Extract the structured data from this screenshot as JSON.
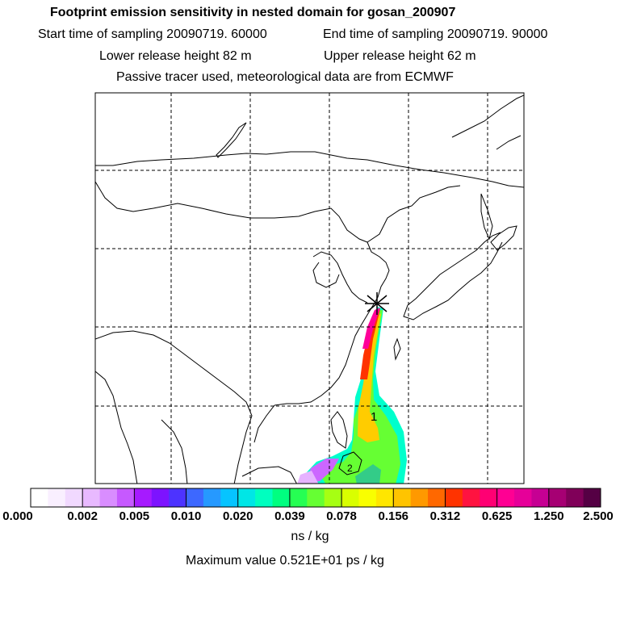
{
  "header": {
    "title": "Footprint emission sensitivity in nested domain for gosan_200907",
    "start": "Start time of sampling 20090719. 60000",
    "end": "End time of sampling 20090719. 90000",
    "lower": "Lower release height   82 m",
    "upper": "Upper release height   62 m",
    "passive": "Passive tracer used, meteorological data are from ECMWF"
  },
  "map": {
    "release_marker": "release-site-star",
    "plume_label": "1",
    "plume_label_2": "2"
  },
  "legend": {
    "ticks": [
      "0.000",
      "0.002",
      "0.005",
      "0.010",
      "0.020",
      "0.039",
      "0.078",
      "0.156",
      "0.312",
      "0.625",
      "1.250",
      "2.500"
    ],
    "units": "ns / kg",
    "max_value": "Maximum value  0.521E+01 ps / kg",
    "colors": [
      "#ffffff",
      "#f5e6ff",
      "#e6b3ff",
      "#cc66ff",
      "#9900ff",
      "#4d33ff",
      "#3388ff",
      "#00ccff",
      "#00ffcc",
      "#00ff66",
      "#66ff33",
      "#ccff00",
      "#ffff00",
      "#ffcc00",
      "#ff8800",
      "#ff3300",
      "#ff0066",
      "#ff0099",
      "#cc0099",
      "#990066",
      "#550044"
    ]
  }
}
